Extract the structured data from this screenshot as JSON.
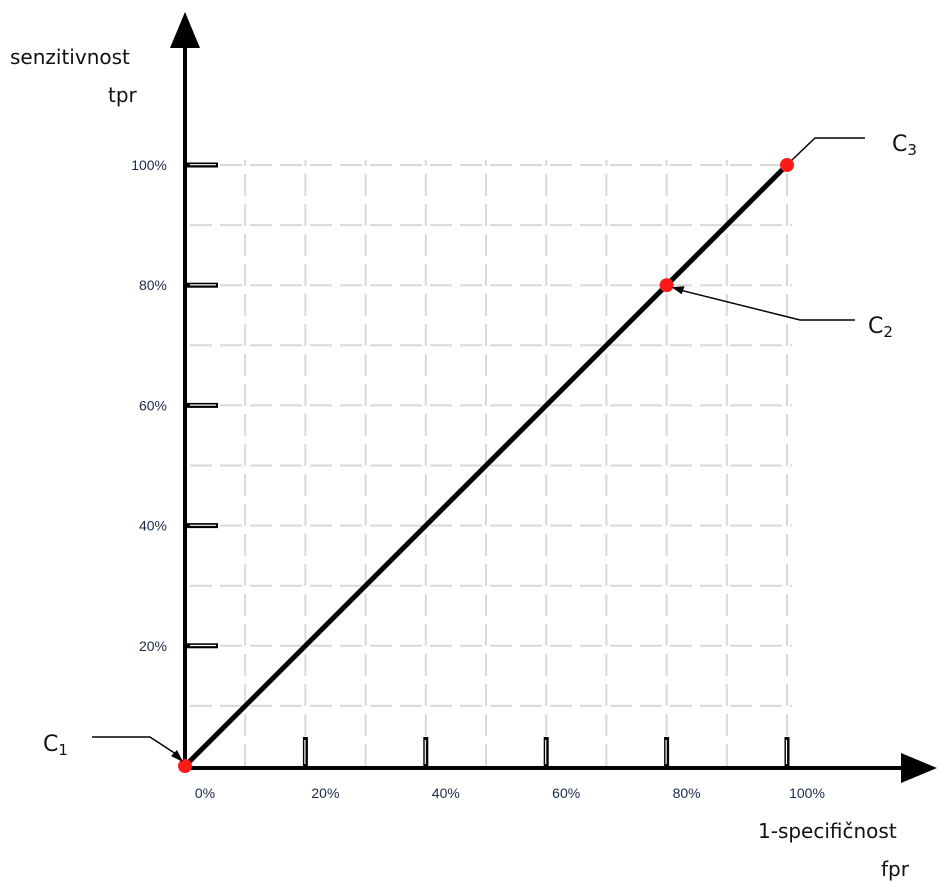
{
  "chart_data": {
    "type": "line",
    "x": [
      0,
      80,
      100
    ],
    "y": [
      0,
      80,
      100
    ],
    "xlim": [
      0,
      100
    ],
    "ylim": [
      0,
      100
    ],
    "x_ticks": [
      "0%",
      "20%",
      "40%",
      "60%",
      "80%",
      "100%"
    ],
    "y_ticks": [
      "20%",
      "40%",
      "60%",
      "80%",
      "100%"
    ],
    "xlabel": [
      "1-specifičnost",
      "fpr"
    ],
    "ylabel": [
      "senzitivnost",
      "tpr"
    ],
    "grid": true,
    "points": [
      {
        "label": "C",
        "sub": "1",
        "x": 0,
        "y": 0
      },
      {
        "label": "C",
        "sub": "2",
        "x": 80,
        "y": 80
      },
      {
        "label": "C",
        "sub": "3",
        "x": 100,
        "y": 100
      }
    ],
    "colors": {
      "line": "#000000",
      "points": "#ff1a1a",
      "grid": "#d9d9d9"
    }
  }
}
